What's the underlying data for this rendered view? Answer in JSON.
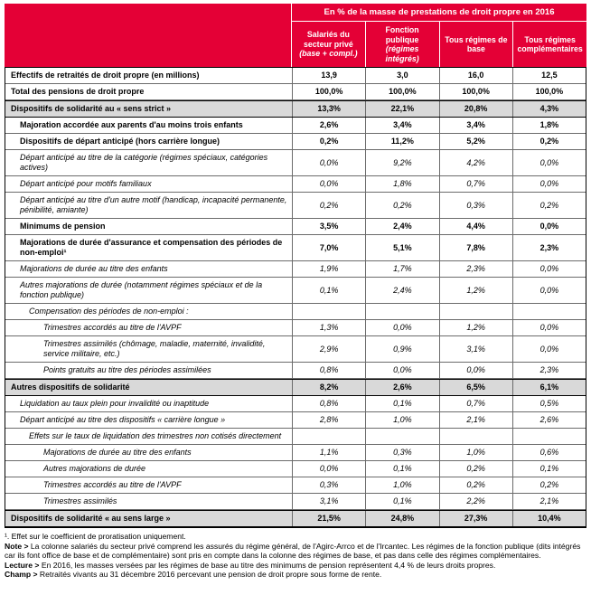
{
  "colors": {
    "header_red": "#e40036",
    "section_gray": "#d9d9d9"
  },
  "chart_data": {
    "type": "table",
    "title": "En % de la masse de prestations de droit propre en 2016",
    "columns": [
      {
        "label": "Salariés du secteur privé",
        "sub": "(base + compl.)"
      },
      {
        "label": "Fonction publique",
        "sub": "(régimes intégrés)"
      },
      {
        "label": "Tous régimes de base",
        "sub": ""
      },
      {
        "label": "Tous régimes complémentaires",
        "sub": ""
      }
    ],
    "rows": [
      {
        "label": "Effectifs de retraités de droit propre (en millions)",
        "values": [
          "13,9",
          "3,0",
          "16,0",
          "12,5"
        ],
        "indent": 0,
        "bold": true,
        "italic": false,
        "shaded": false
      },
      {
        "label": "Total des pensions de droit propre",
        "values": [
          "100,0%",
          "100,0%",
          "100,0%",
          "100,0%"
        ],
        "indent": 0,
        "bold": true,
        "italic": false,
        "shaded": false
      },
      {
        "label": "Dispositifs de solidarité au « sens strict »",
        "values": [
          "13,3%",
          "22,1%",
          "20,8%",
          "4,3%"
        ],
        "indent": 0,
        "bold": true,
        "italic": false,
        "shaded": true
      },
      {
        "label": "Majoration accordée aux parents d'au moins trois enfants",
        "values": [
          "2,6%",
          "3,4%",
          "3,4%",
          "1,8%"
        ],
        "indent": 1,
        "bold": true,
        "italic": false,
        "shaded": false
      },
      {
        "label": "Dispositifs de départ anticipé (hors carrière longue)",
        "values": [
          "0,2%",
          "11,2%",
          "5,2%",
          "0,2%"
        ],
        "indent": 1,
        "bold": true,
        "italic": false,
        "shaded": false
      },
      {
        "label": "Départ anticipé au titre de la catégorie (régimes spéciaux, catégories actives)",
        "values": [
          "0,0%",
          "9,2%",
          "4,2%",
          "0,0%"
        ],
        "indent": 1,
        "bold": false,
        "italic": true,
        "shaded": false
      },
      {
        "label": "Départ anticipé pour motifs familiaux",
        "values": [
          "0,0%",
          "1,8%",
          "0,7%",
          "0,0%"
        ],
        "indent": 1,
        "bold": false,
        "italic": true,
        "shaded": false
      },
      {
        "label": "Départ anticipé au titre d'un autre motif (handicap, incapacité permanente, pénibilité, amiante)",
        "values": [
          "0,2%",
          "0,2%",
          "0,3%",
          "0,2%"
        ],
        "indent": 1,
        "bold": false,
        "italic": true,
        "shaded": false
      },
      {
        "label": "Minimums de pension",
        "values": [
          "3,5%",
          "2,4%",
          "4,4%",
          "0,0%"
        ],
        "indent": 1,
        "bold": true,
        "italic": false,
        "shaded": false
      },
      {
        "label": "Majorations de durée d'assurance et compensation des périodes de non-emploi¹",
        "values": [
          "7,0%",
          "5,1%",
          "7,8%",
          "2,3%"
        ],
        "indent": 1,
        "bold": true,
        "italic": false,
        "shaded": false
      },
      {
        "label": "Majorations de durée au titre des enfants",
        "values": [
          "1,9%",
          "1,7%",
          "2,3%",
          "0,0%"
        ],
        "indent": 1,
        "bold": false,
        "italic": true,
        "shaded": false
      },
      {
        "label": "Autres majorations de durée (notamment régimes spéciaux et de la fonction publique)",
        "values": [
          "0,1%",
          "2,4%",
          "1,2%",
          "0,0%"
        ],
        "indent": 1,
        "bold": false,
        "italic": true,
        "shaded": false
      },
      {
        "label": "Compensation des périodes de non-emploi :",
        "values": [
          "",
          "",
          "",
          ""
        ],
        "indent": 2,
        "bold": false,
        "italic": true,
        "shaded": false
      },
      {
        "label": "Trimestres accordés au titre de l'AVPF",
        "values": [
          "1,3%",
          "0,0%",
          "1,2%",
          "0,0%"
        ],
        "indent": 3,
        "bold": false,
        "italic": true,
        "shaded": false
      },
      {
        "label": "Trimestres assimilés (chômage, maladie, maternité, invalidité, service militaire, etc.)",
        "values": [
          "2,9%",
          "0,9%",
          "3,1%",
          "0,0%"
        ],
        "indent": 3,
        "bold": false,
        "italic": true,
        "shaded": false
      },
      {
        "label": "Points gratuits au titre des périodes assimilées",
        "values": [
          "0,8%",
          "0,0%",
          "0,0%",
          "2,3%"
        ],
        "indent": 3,
        "bold": false,
        "italic": true,
        "shaded": false
      },
      {
        "label": "Autres dispositifs de solidarité",
        "values": [
          "8,2%",
          "2,6%",
          "6,5%",
          "6,1%"
        ],
        "indent": 0,
        "bold": true,
        "italic": false,
        "shaded": true
      },
      {
        "label": "Liquidation au taux plein pour invalidité ou inaptitude",
        "values": [
          "0,8%",
          "0,1%",
          "0,7%",
          "0,5%"
        ],
        "indent": 1,
        "bold": false,
        "italic": true,
        "shaded": false
      },
      {
        "label": "Départ anticipé au titre des dispositifs « carrière longue »",
        "values": [
          "2,8%",
          "1,0%",
          "2,1%",
          "2,6%"
        ],
        "indent": 1,
        "bold": false,
        "italic": true,
        "shaded": false
      },
      {
        "label": "Effets sur le taux de liquidation des trimestres non cotisés directement",
        "values": [
          "",
          "",
          "",
          ""
        ],
        "indent": 2,
        "bold": false,
        "italic": true,
        "shaded": false
      },
      {
        "label": "Majorations de durée au titre des enfants",
        "values": [
          "1,1%",
          "0,3%",
          "1,0%",
          "0,6%"
        ],
        "indent": 3,
        "bold": false,
        "italic": true,
        "shaded": false
      },
      {
        "label": "Autres majorations de durée",
        "values": [
          "0,0%",
          "0,1%",
          "0,2%",
          "0,1%"
        ],
        "indent": 3,
        "bold": false,
        "italic": true,
        "shaded": false
      },
      {
        "label": "Trimestres accordés au titre de l'AVPF",
        "values": [
          "0,3%",
          "1,0%",
          "0,2%",
          "0,2%"
        ],
        "indent": 3,
        "bold": false,
        "italic": true,
        "shaded": false
      },
      {
        "label": "Trimestres assimilés",
        "values": [
          "3,1%",
          "0,1%",
          "2,2%",
          "2,1%"
        ],
        "indent": 3,
        "bold": false,
        "italic": true,
        "shaded": false
      },
      {
        "label": "Dispositifs de solidarité « au sens large »",
        "values": [
          "21,5%",
          "24,8%",
          "27,3%",
          "10,4%"
        ],
        "indent": 0,
        "bold": true,
        "italic": false,
        "shaded": true
      }
    ]
  },
  "footnotes": [
    {
      "prefix": "",
      "text": "¹. Effet sur le coefficient de proratisation uniquement."
    },
    {
      "prefix": "Note >",
      "text": "La colonne salariés du secteur privé comprend les assurés du régime général, de l'Agirc-Arrco et de l'Ircantec. Les régimes de la fonction publique (dits intégrés car ils font office de base et de complémentaire) sont pris en compte dans la colonne des régimes de base, et pas dans celle des régimes complémentaires."
    },
    {
      "prefix": "Lecture >",
      "text": "En 2016, les masses versées par les régimes de base au titre des minimums de pension représentent 4,4 % de leurs droits propres."
    },
    {
      "prefix": "Champ >",
      "text": "Retraités vivants au 31 décembre 2016 percevant une pension de droit propre sous forme de rente."
    }
  ]
}
